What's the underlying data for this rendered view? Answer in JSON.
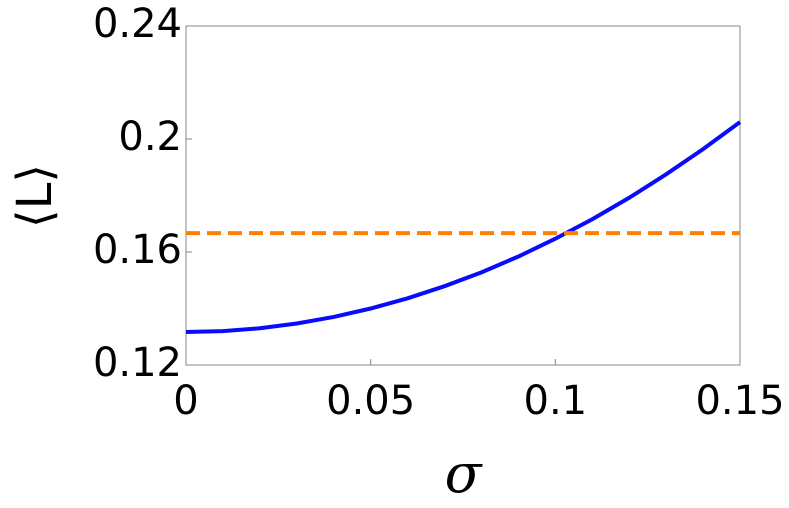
{
  "chart_data": {
    "type": "line",
    "x_label": "σ",
    "y_label": "⟨L⟩",
    "x": [
      0,
      0.01,
      0.02,
      0.03,
      0.04,
      0.05,
      0.06,
      0.07,
      0.08,
      0.09,
      0.1,
      0.11,
      0.12,
      0.13,
      0.14,
      0.15
    ],
    "series": [
      {
        "color": "#0a0aff",
        "dash": false,
        "values": [
          0.1317,
          0.132,
          0.133,
          0.1347,
          0.137,
          0.14,
          0.1436,
          0.1479,
          0.1528,
          0.1584,
          0.1647,
          0.1716,
          0.1792,
          0.1875,
          0.1964,
          0.206
        ]
      },
      {
        "color": "#ff8000",
        "dash": true,
        "values": [
          0.1667,
          0.1667,
          0.1667,
          0.1667,
          0.1667,
          0.1667,
          0.1667,
          0.1667,
          0.1667,
          0.1667,
          0.1667,
          0.1667,
          0.1667,
          0.1667,
          0.1667,
          0.1667
        ]
      }
    ],
    "xlim": [
      0,
      0.15
    ],
    "ylim": [
      0.12,
      0.24
    ],
    "xticks": [
      0,
      0.05,
      0.1,
      0.15
    ],
    "yticks": [
      0.12,
      0.16,
      0.2,
      0.24
    ],
    "grid": false
  }
}
